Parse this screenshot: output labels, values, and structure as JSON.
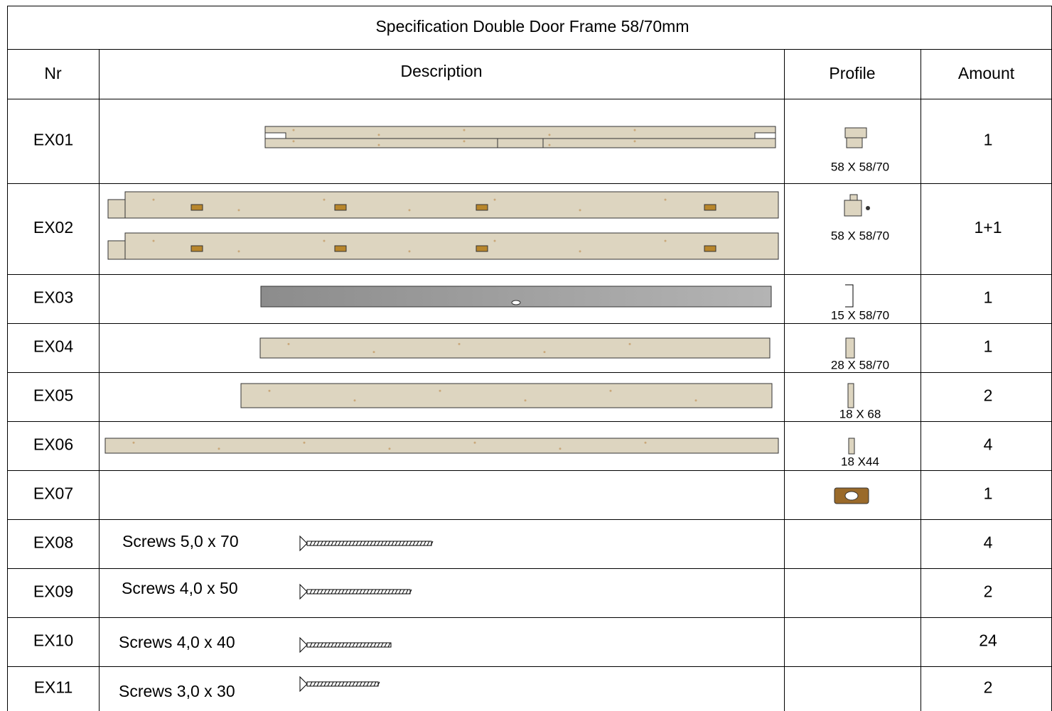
{
  "title": "Specification Double Door Frame 58/70mm",
  "table": {
    "headers": [
      "Nr",
      "Description",
      "Profile",
      "Amount"
    ],
    "rows": [
      {
        "nr": "EX01",
        "profile": "58 X 58/70",
        "amount": "1"
      },
      {
        "nr": "EX02",
        "profile": "58 X 58/70",
        "amount": "1+1"
      },
      {
        "nr": "EX03",
        "profile": "15 X 58/70",
        "amount": "1"
      },
      {
        "nr": "EX04",
        "profile": "28 X 58/70",
        "amount": "1"
      },
      {
        "nr": "EX05",
        "profile": "18 X 68",
        "amount": "2"
      },
      {
        "nr": "EX06",
        "profile": "18 X44",
        "amount": "4"
      },
      {
        "nr": "EX07",
        "amount": "1"
      },
      {
        "nr": "EX08",
        "description": "Screws 5,0 x 70",
        "amount": "4"
      },
      {
        "nr": "EX09",
        "description": "Screws 4,0 x 50",
        "amount": "2"
      },
      {
        "nr": "EX10",
        "description": "Screws 4,0 x 40",
        "amount": "24"
      },
      {
        "nr": "EX11",
        "description": "Screws 3,0 x 30",
        "amount": "2"
      }
    ]
  }
}
